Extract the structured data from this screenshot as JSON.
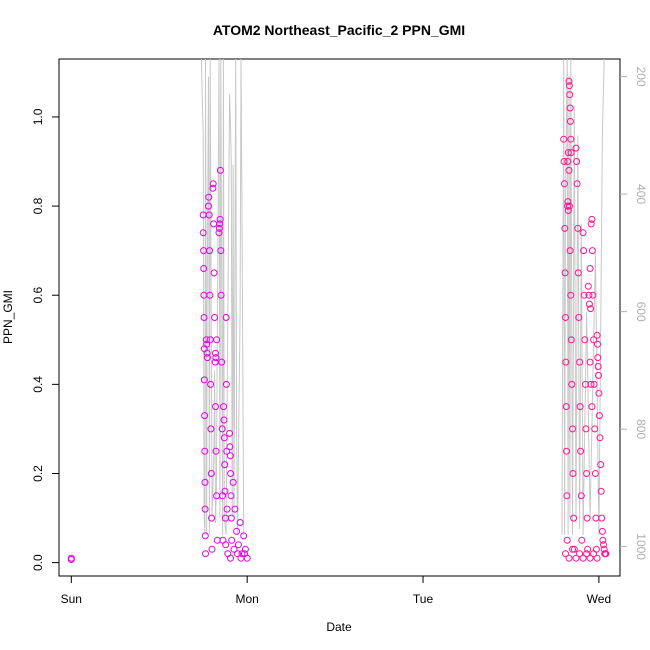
{
  "chart_data": {
    "type": "scatter",
    "title": "ATOM2 Northeast_Pacific_2 PPN_GMI",
    "xlabel": "Date",
    "ylabel": "PPN_GMI",
    "x_ticks": [
      "Sun",
      "Mon",
      "Tue",
      "Wed"
    ],
    "xlim_days": [
      -0.07,
      3.12
    ],
    "ylim": [
      -0.03,
      1.13
    ],
    "y_ticks": [
      "0.0",
      "0.2",
      "0.4",
      "0.6",
      "0.8",
      "1.0"
    ],
    "y2_label": "",
    "y2_ticks": [
      "200",
      "400",
      "600",
      "800",
      "1000"
    ],
    "y2lim": [
      1050,
      170
    ],
    "grid": false,
    "legend": "none",
    "colors": {
      "early": "#e600e6",
      "late": "#ff1493",
      "altitude": "#c8c8c8",
      "axis": "#000000"
    },
    "series": [
      {
        "points": [
          [
            0.0,
            0.01
          ],
          [
            0.0,
            0.007
          ],
          [
            0.75,
            0.78
          ],
          [
            0.75,
            0.74
          ],
          [
            0.752,
            0.7
          ],
          [
            0.753,
            0.66
          ],
          [
            0.754,
            0.6
          ],
          [
            0.755,
            0.55
          ],
          [
            0.756,
            0.48
          ],
          [
            0.757,
            0.41
          ],
          [
            0.758,
            0.33
          ],
          [
            0.759,
            0.25
          ],
          [
            0.76,
            0.18
          ],
          [
            0.761,
            0.12
          ],
          [
            0.762,
            0.06
          ],
          [
            0.763,
            0.02
          ],
          [
            0.768,
            0.5
          ],
          [
            0.77,
            0.49
          ],
          [
            0.772,
            0.47
          ],
          [
            0.774,
            0.46
          ],
          [
            0.78,
            0.8
          ],
          [
            0.782,
            0.82
          ],
          [
            0.784,
            0.78
          ],
          [
            0.786,
            0.7
          ],
          [
            0.788,
            0.6
          ],
          [
            0.79,
            0.5
          ],
          [
            0.792,
            0.4
          ],
          [
            0.794,
            0.3
          ],
          [
            0.796,
            0.2
          ],
          [
            0.798,
            0.1
          ],
          [
            0.8,
            0.03
          ],
          [
            0.805,
            0.84
          ],
          [
            0.807,
            0.85
          ],
          [
            0.809,
            0.76
          ],
          [
            0.812,
            0.65
          ],
          [
            0.815,
            0.55
          ],
          [
            0.818,
            0.45
          ],
          [
            0.82,
            0.35
          ],
          [
            0.823,
            0.25
          ],
          [
            0.826,
            0.15
          ],
          [
            0.83,
            0.05
          ],
          [
            0.82,
            0.47
          ],
          [
            0.822,
            0.46
          ],
          [
            0.826,
            0.5
          ],
          [
            0.84,
            0.74
          ],
          [
            0.842,
            0.75
          ],
          [
            0.844,
            0.76
          ],
          [
            0.846,
            0.77
          ],
          [
            0.848,
            0.88
          ],
          [
            0.85,
            0.7
          ],
          [
            0.852,
            0.6
          ],
          [
            0.855,
            0.45
          ],
          [
            0.858,
            0.3
          ],
          [
            0.86,
            0.15
          ],
          [
            0.862,
            0.05
          ],
          [
            0.866,
            0.35
          ],
          [
            0.868,
            0.32
          ],
          [
            0.87,
            0.28
          ],
          [
            0.872,
            0.22
          ],
          [
            0.874,
            0.16
          ],
          [
            0.876,
            0.1
          ],
          [
            0.878,
            0.04
          ],
          [
            0.88,
            0.55
          ],
          [
            0.882,
            0.4
          ],
          [
            0.884,
            0.25
          ],
          [
            0.886,
            0.12
          ],
          [
            0.9,
            0.29
          ],
          [
            0.902,
            0.26
          ],
          [
            0.904,
            0.24
          ],
          [
            0.906,
            0.2
          ],
          [
            0.908,
            0.15
          ],
          [
            0.91,
            0.1
          ],
          [
            0.912,
            0.05
          ],
          [
            0.92,
            0.18
          ],
          [
            0.93,
            0.12
          ],
          [
            0.94,
            0.07
          ],
          [
            0.95,
            0.04
          ],
          [
            0.96,
            0.09
          ],
          [
            0.97,
            0.02
          ],
          [
            0.98,
            0.06
          ],
          [
            0.99,
            0.03
          ],
          [
            1.0,
            0.01
          ],
          [
            0.89,
            0.02
          ],
          [
            0.905,
            0.01
          ],
          [
            0.925,
            0.03
          ],
          [
            0.945,
            0.02
          ],
          [
            0.965,
            0.01
          ],
          [
            0.985,
            0.02
          ]
        ]
      },
      {
        "points": [
          [
            2.8,
            0.95
          ],
          [
            2.802,
            0.9
          ],
          [
            2.804,
            0.85
          ],
          [
            2.806,
            0.75
          ],
          [
            2.808,
            0.65
          ],
          [
            2.81,
            0.55
          ],
          [
            2.812,
            0.45
          ],
          [
            2.814,
            0.35
          ],
          [
            2.816,
            0.25
          ],
          [
            2.818,
            0.15
          ],
          [
            2.82,
            0.05
          ],
          [
            2.823,
            0.9
          ],
          [
            2.826,
            0.92
          ],
          [
            2.83,
            0.88
          ],
          [
            2.833,
            0.8
          ],
          [
            2.836,
            0.7
          ],
          [
            2.84,
            0.6
          ],
          [
            2.843,
            0.5
          ],
          [
            2.846,
            0.4
          ],
          [
            2.85,
            0.3
          ],
          [
            2.853,
            0.2
          ],
          [
            2.856,
            0.1
          ],
          [
            2.86,
            0.03
          ],
          [
            2.822,
            0.8
          ],
          [
            2.824,
            0.81
          ],
          [
            2.826,
            0.79
          ],
          [
            2.83,
            1.08
          ],
          [
            2.832,
            1.07
          ],
          [
            2.834,
            1.05
          ],
          [
            2.836,
            1.02
          ],
          [
            2.838,
            0.99
          ],
          [
            2.84,
            0.95
          ],
          [
            2.842,
            0.92
          ],
          [
            2.87,
            0.93
          ],
          [
            2.873,
            0.9
          ],
          [
            2.876,
            0.85
          ],
          [
            2.88,
            0.75
          ],
          [
            2.883,
            0.65
          ],
          [
            2.886,
            0.55
          ],
          [
            2.89,
            0.45
          ],
          [
            2.893,
            0.35
          ],
          [
            2.896,
            0.25
          ],
          [
            2.9,
            0.15
          ],
          [
            2.903,
            0.05
          ],
          [
            2.91,
            0.74
          ],
          [
            2.913,
            0.7
          ],
          [
            2.916,
            0.6
          ],
          [
            2.92,
            0.5
          ],
          [
            2.923,
            0.4
          ],
          [
            2.926,
            0.3
          ],
          [
            2.93,
            0.2
          ],
          [
            2.933,
            0.1
          ],
          [
            2.936,
            0.03
          ],
          [
            2.94,
            0.62
          ],
          [
            2.943,
            0.6
          ],
          [
            2.946,
            0.58
          ],
          [
            2.95,
            0.66
          ],
          [
            2.953,
            0.57
          ],
          [
            2.956,
            0.76
          ],
          [
            2.96,
            0.77
          ],
          [
            2.963,
            0.7
          ],
          [
            2.966,
            0.6
          ],
          [
            2.97,
            0.5
          ],
          [
            2.973,
            0.4
          ],
          [
            2.976,
            0.3
          ],
          [
            2.98,
            0.2
          ],
          [
            2.983,
            0.1
          ],
          [
            2.986,
            0.03
          ],
          [
            2.95,
            0.45
          ],
          [
            2.955,
            0.4
          ],
          [
            2.96,
            0.35
          ],
          [
            2.99,
            0.51
          ],
          [
            2.992,
            0.49
          ],
          [
            2.994,
            0.46
          ],
          [
            2.996,
            0.44
          ],
          [
            2.998,
            0.42
          ],
          [
            3.0,
            0.38
          ],
          [
            3.003,
            0.33
          ],
          [
            3.006,
            0.28
          ],
          [
            3.01,
            0.22
          ],
          [
            3.013,
            0.16
          ],
          [
            3.016,
            0.1
          ],
          [
            3.02,
            0.07
          ],
          [
            3.023,
            0.05
          ],
          [
            3.026,
            0.04
          ],
          [
            3.03,
            0.03
          ],
          [
            3.033,
            0.02
          ],
          [
            3.036,
            0.02
          ],
          [
            3.04,
            0.02
          ],
          [
            2.81,
            0.02
          ],
          [
            2.83,
            0.01
          ],
          [
            2.85,
            0.03
          ],
          [
            2.87,
            0.01
          ],
          [
            2.89,
            0.02
          ],
          [
            2.91,
            0.01
          ],
          [
            2.93,
            0.02
          ],
          [
            2.95,
            0.01
          ],
          [
            2.97,
            0.02
          ],
          [
            2.99,
            0.01
          ]
        ]
      }
    ],
    "altitude_trace": [
      [
        0.74,
        170
      ],
      [
        0.75,
        300
      ],
      [
        0.755,
        950
      ],
      [
        0.76,
        980
      ],
      [
        0.763,
        170
      ],
      [
        0.77,
        980
      ],
      [
        0.772,
        600
      ],
      [
        0.78,
        200
      ],
      [
        0.785,
        980
      ],
      [
        0.79,
        170
      ],
      [
        0.8,
        950
      ],
      [
        0.81,
        850
      ],
      [
        0.815,
        700
      ],
      [
        0.82,
        960
      ],
      [
        0.825,
        900
      ],
      [
        0.84,
        170
      ],
      [
        0.845,
        950
      ],
      [
        0.85,
        170
      ],
      [
        0.86,
        980
      ],
      [
        0.865,
        170
      ],
      [
        0.87,
        950
      ],
      [
        0.88,
        980
      ],
      [
        0.9,
        230
      ],
      [
        0.905,
        280
      ],
      [
        0.91,
        350
      ],
      [
        0.915,
        950
      ],
      [
        0.92,
        350
      ],
      [
        0.925,
        950
      ],
      [
        0.935,
        170
      ],
      [
        0.94,
        800
      ],
      [
        0.945,
        980
      ],
      [
        0.96,
        600
      ],
      [
        0.965,
        170
      ],
      [
        0.97,
        400
      ],
      [
        0.98,
        980
      ],
      [
        2.79,
        980
      ],
      [
        2.8,
        170
      ],
      [
        2.805,
        980
      ],
      [
        2.81,
        400
      ],
      [
        2.82,
        170
      ],
      [
        2.825,
        980
      ],
      [
        2.83,
        200
      ],
      [
        2.835,
        950
      ],
      [
        2.84,
        170
      ],
      [
        2.85,
        980
      ],
      [
        2.86,
        250
      ],
      [
        2.87,
        960
      ],
      [
        2.88,
        300
      ],
      [
        2.89,
        970
      ],
      [
        2.9,
        450
      ],
      [
        2.91,
        980
      ],
      [
        2.93,
        600
      ],
      [
        2.95,
        950
      ],
      [
        2.98,
        500
      ],
      [
        3.0,
        980
      ],
      [
        3.02,
        300
      ],
      [
        3.03,
        170
      ]
    ]
  }
}
